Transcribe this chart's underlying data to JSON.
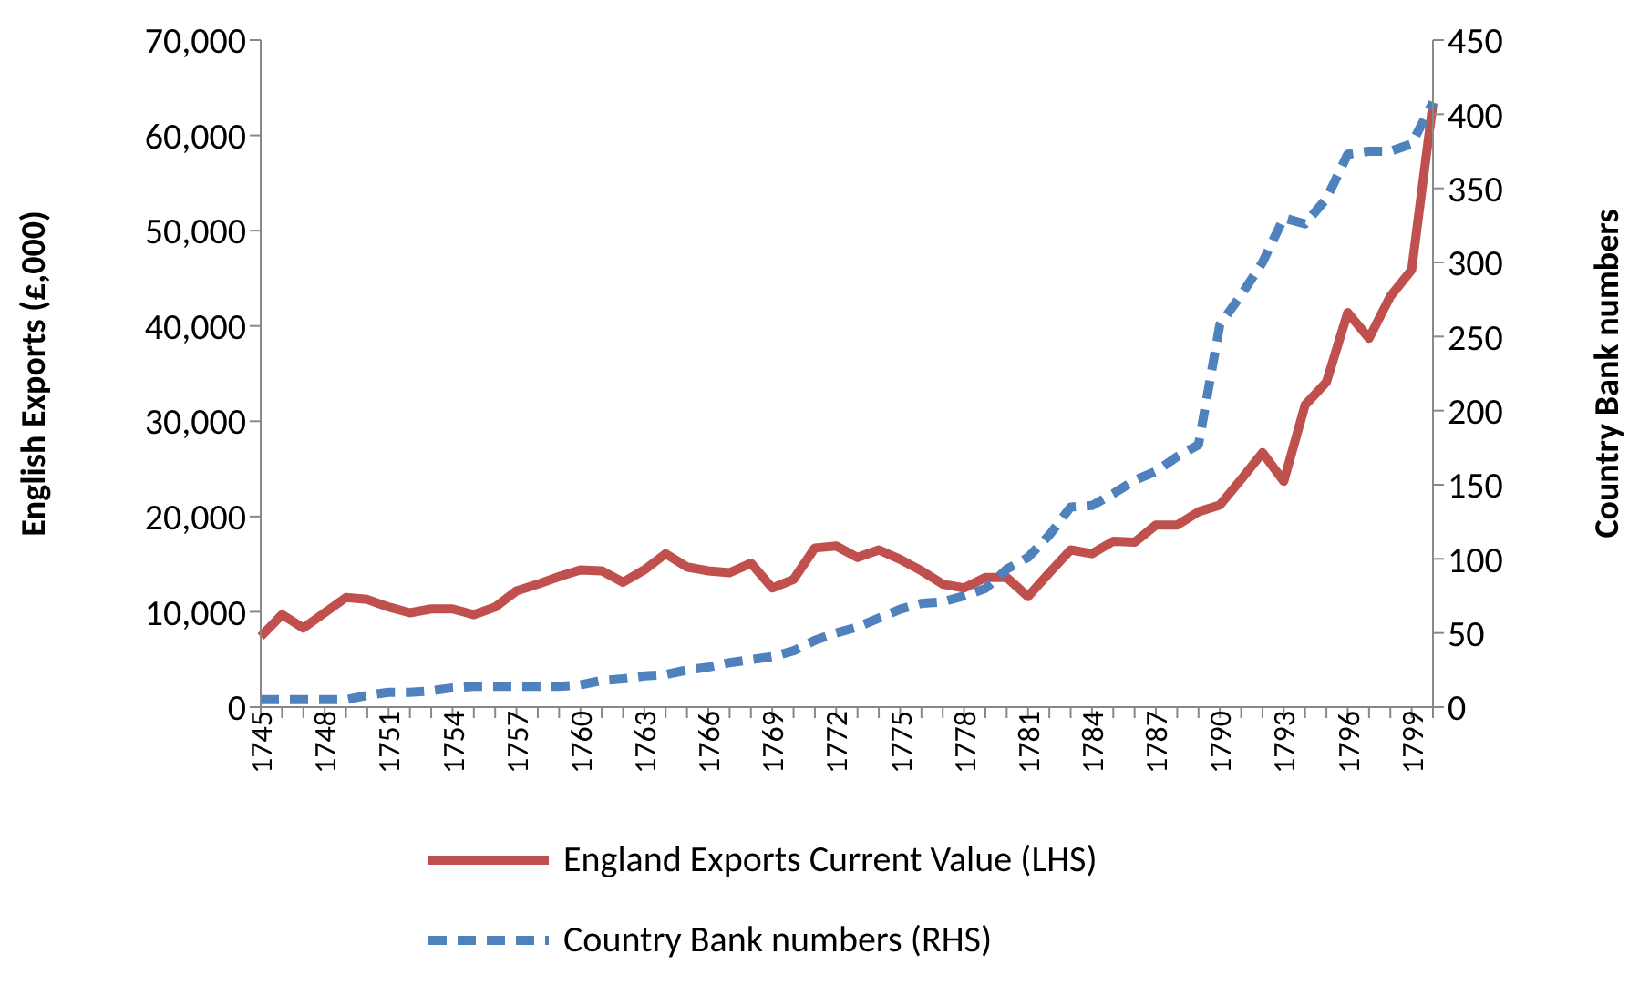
{
  "chart_data": {
    "type": "line",
    "ylabel": "English Exports (£,000)",
    "y2label": "Country Bank numbers",
    "categories": [
      "1745",
      null,
      null,
      "1748",
      null,
      null,
      "1751",
      null,
      null,
      "1754",
      null,
      null,
      "1757",
      null,
      null,
      "1760",
      null,
      null,
      "1763",
      null,
      null,
      "1766",
      null,
      null,
      "1769",
      null,
      null,
      "1772",
      null,
      null,
      "1775",
      null,
      null,
      "1778",
      null,
      null,
      "1781",
      null,
      null,
      "1784",
      null,
      null,
      "1787",
      null,
      null,
      "1790",
      null,
      null,
      "1793",
      null,
      null,
      "1796",
      null,
      null,
      "1799",
      null
    ],
    "series": [
      {
        "name": "England Exports Current Value (LHS)",
        "color": "#c0504d",
        "line_style": "solid",
        "values": [
          7400,
          9700,
          8300,
          9900,
          11500,
          11300,
          10500,
          9900,
          10300,
          10300,
          9700,
          10500,
          12200,
          12900,
          13700,
          14400,
          14300,
          13100,
          14400,
          16100,
          14700,
          14300,
          14100,
          15100,
          12500,
          13400,
          16700,
          16900,
          15700,
          16500,
          15500,
          14300,
          12900,
          12500,
          13600,
          13600,
          11600,
          14100,
          16500,
          16100,
          17400,
          17300,
          19100,
          19100,
          20500,
          21200,
          23900,
          26700,
          23700,
          31700,
          34100,
          41400,
          38700,
          43100,
          45900,
          63400
        ]
      },
      {
        "name": "Country Bank numbers (RHS)",
        "color": "#4f81bd",
        "line_style": "dashed",
        "axis": "y2",
        "values": [
          5,
          5,
          5,
          5,
          5,
          8,
          10,
          10,
          11,
          13,
          14,
          14,
          14,
          14,
          14,
          15,
          18,
          19,
          21,
          22,
          25,
          27,
          30,
          32,
          34,
          38,
          45,
          50,
          54,
          60,
          66,
          70,
          71,
          75,
          80,
          93,
          101,
          116,
          135,
          136,
          144,
          153,
          159,
          169,
          177,
          258,
          278,
          300,
          330,
          326,
          343,
          373,
          375,
          375,
          380,
          408
        ]
      }
    ],
    "ylim": [
      0,
      70000
    ],
    "yticks": [
      {
        "value": 0,
        "label": "0"
      },
      {
        "value": 10000,
        "label": "10,000"
      },
      {
        "value": 20000,
        "label": "20,000"
      },
      {
        "value": 30000,
        "label": "30,000"
      },
      {
        "value": 40000,
        "label": "40,000"
      },
      {
        "value": 50000,
        "label": "50,000"
      },
      {
        "value": 60000,
        "label": "60,000"
      },
      {
        "value": 70000,
        "label": "70,000"
      }
    ],
    "y2lim": [
      0,
      450
    ],
    "y2ticks": [
      0,
      50,
      100,
      150,
      200,
      250,
      300,
      350,
      400,
      450
    ],
    "grid": false,
    "legend": "bottom",
    "marker": "none"
  }
}
